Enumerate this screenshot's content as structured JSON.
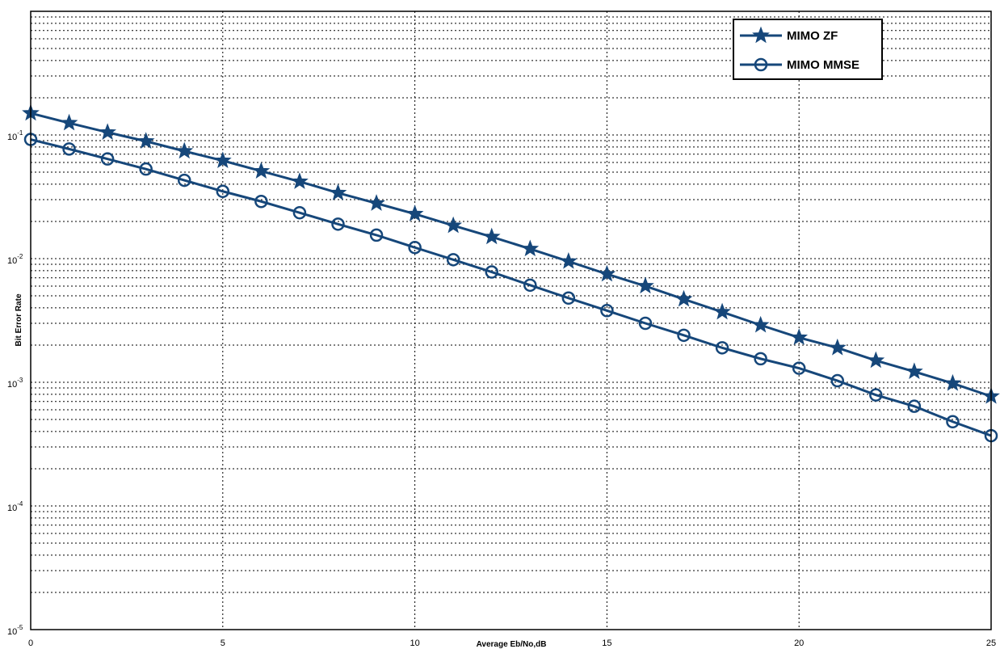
{
  "chart_data": {
    "type": "line",
    "xlabel": "Average Eb/No,dB",
    "ylabel": "Bit Error Rate",
    "xlim": [
      0,
      25
    ],
    "ylim": [
      1e-05,
      1
    ],
    "yscale": "log",
    "grid": true,
    "legend_position": "top-right",
    "x_ticks": [
      0,
      5,
      10,
      15,
      20,
      25
    ],
    "y_ticks": [
      {
        "value": 0.1,
        "base": "10",
        "exp": "-1"
      },
      {
        "value": 0.01,
        "base": "10",
        "exp": "-2"
      },
      {
        "value": 0.001,
        "base": "10",
        "exp": "-3"
      },
      {
        "value": 0.0001,
        "base": "10",
        "exp": "-4"
      },
      {
        "value": 1e-05,
        "base": "10",
        "exp": "-5"
      }
    ],
    "x": [
      0,
      1,
      2,
      3,
      4,
      5,
      6,
      7,
      8,
      9,
      10,
      11,
      12,
      13,
      14,
      15,
      16,
      17,
      18,
      19,
      20,
      21,
      22,
      23,
      24,
      25
    ],
    "series": [
      {
        "name": "MIMO ZF",
        "marker": "star",
        "color": "#16477a",
        "values": [
          0.15,
          0.125,
          0.105,
          0.089,
          0.074,
          0.062,
          0.051,
          0.042,
          0.034,
          0.028,
          0.023,
          0.0185,
          0.015,
          0.012,
          0.0095,
          0.0075,
          0.006,
          0.0047,
          0.0037,
          0.0029,
          0.0023,
          0.0019,
          0.0015,
          0.00122,
          0.00098,
          0.00077
        ]
      },
      {
        "name": "MIMO MMSE",
        "marker": "circle",
        "color": "#16477a",
        "values": [
          0.092,
          0.077,
          0.064,
          0.053,
          0.043,
          0.035,
          0.029,
          0.0235,
          0.019,
          0.0155,
          0.0123,
          0.0098,
          0.0078,
          0.0061,
          0.0048,
          0.0038,
          0.003,
          0.0024,
          0.0019,
          0.00155,
          0.0013,
          0.00103,
          0.00079,
          0.00064,
          0.00048,
          0.00037
        ]
      }
    ]
  }
}
